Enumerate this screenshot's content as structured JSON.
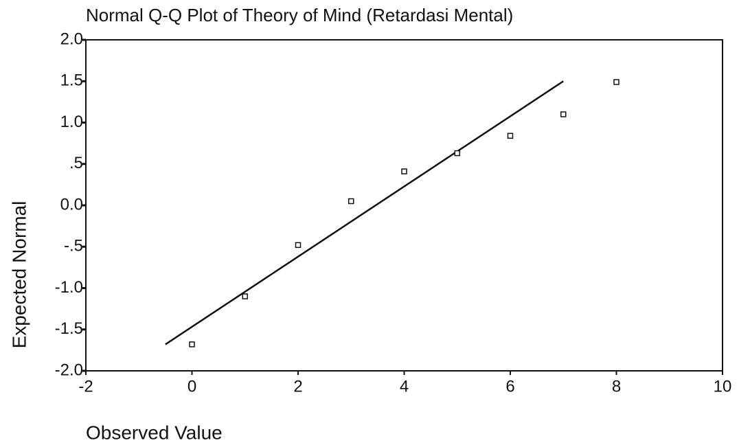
{
  "chart_data": {
    "type": "scatter",
    "title": "Normal Q-Q Plot of Theory of Mind (Retardasi Mental)",
    "x_label": "Observed Value",
    "y_label": "Expected Normal",
    "series": [
      {
        "name": "Theory of Mind",
        "color": "#111111",
        "x": [
          0,
          1,
          2,
          3,
          4,
          5,
          6,
          7,
          8
        ],
        "values": [
          -1.68,
          -1.1,
          -0.48,
          0.05,
          0.41,
          0.63,
          0.84,
          1.1,
          1.49
        ]
      }
    ],
    "reference_line": {
      "x": [
        -0.5,
        7
      ],
      "y": [
        -1.68,
        1.5
      ],
      "color": "#111111"
    },
    "xlim": [
      -2,
      10
    ],
    "xticks": [
      -2,
      0,
      2,
      4,
      6,
      8,
      10
    ],
    "ylim": [
      -2,
      2
    ],
    "yticks": [
      {
        "value": 2,
        "label": "2.0"
      },
      {
        "value": 1.5,
        "label": "1.5"
      },
      {
        "value": 1,
        "label": "1.0"
      },
      {
        "value": 0.5,
        "label": ".5"
      },
      {
        "value": 0,
        "label": "0.0"
      },
      {
        "value": -0.5,
        "label": "-.5"
      },
      {
        "value": -1,
        "label": "-1.0"
      },
      {
        "value": -1.5,
        "label": "-1.5"
      },
      {
        "value": -2,
        "label": "-2.0"
      }
    ],
    "grid": false
  }
}
